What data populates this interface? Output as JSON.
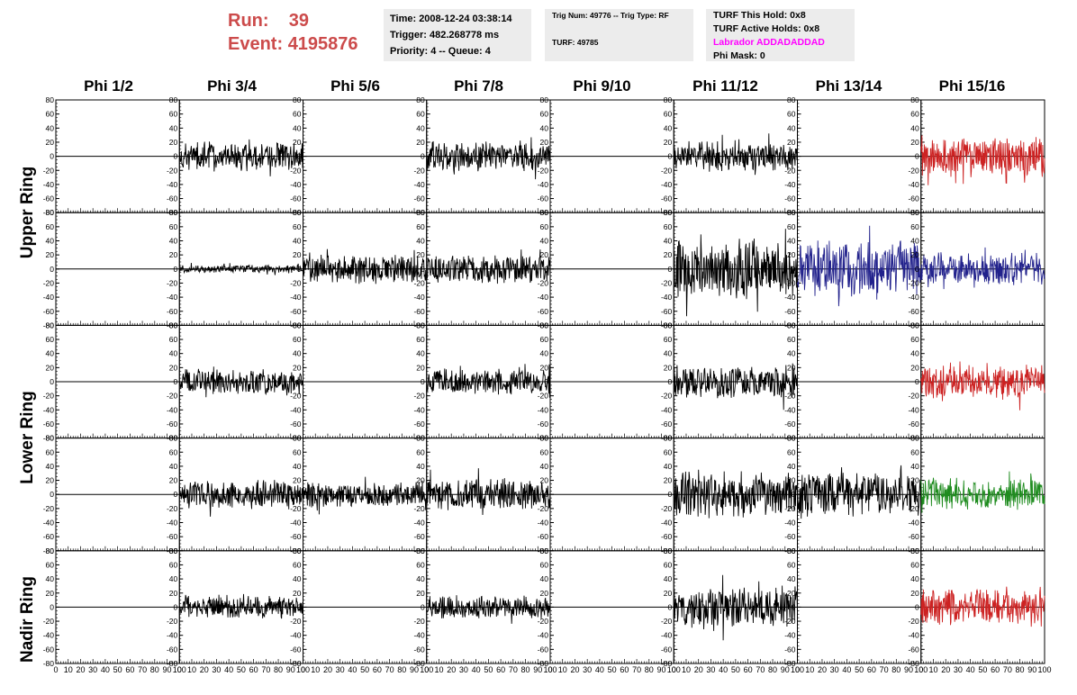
{
  "header": {
    "run_label": "Run:",
    "run_value": "39",
    "event_label": "Event:",
    "event_value": "4195876",
    "time": "Time: 2008-12-24 03:38:14",
    "trigger": "Trigger: 482.268778 ms",
    "priority": "Priority: 4 -- Queue: 4",
    "trig_num": "Trig Num: 49776 -- Trig Type: RF",
    "turf": "TURF: 49785",
    "turf_this_hold": "TURF This Hold: 0x8",
    "turf_active_holds": "TURF Active Holds: 0x8",
    "labrador": "Labrador ADDADADDAD",
    "phi_mask": "Phi Mask: 0"
  },
  "columns": [
    "Phi 1/2",
    "Phi 3/4",
    "Phi 5/6",
    "Phi 7/8",
    "Phi 9/10",
    "Phi 11/12",
    "Phi 13/14",
    "Phi 15/16"
  ],
  "ring_labels": [
    "Upper Ring",
    "Lower Ring",
    "Nadir Ring"
  ],
  "colors": {
    "black": "#000000",
    "red": "#cc2222",
    "blue": "#22228c",
    "green": "#1f8c1f",
    "header_red": "#cc4b4b",
    "labrador": "#ff00ff",
    "box_bg": "#ececec"
  },
  "chart_data": {
    "type": "line",
    "x_range": [
      0,
      100
    ],
    "y_range": [
      -80,
      80
    ],
    "y_ticks": [
      80,
      60,
      40,
      20,
      0,
      -20,
      -40,
      -60,
      -80
    ],
    "x_ticks": [
      "0",
      "10",
      "20",
      "30",
      "40",
      "50",
      "60",
      "70",
      "80",
      "90",
      "100"
    ],
    "grid": false,
    "rows": [
      {
        "row": 1,
        "ring": "Upper Ring",
        "traces": [
          {
            "col": 1,
            "present": false
          },
          {
            "col": 2,
            "present": true,
            "color": "black",
            "amplitude": 22
          },
          {
            "col": 3,
            "present": false
          },
          {
            "col": 4,
            "present": true,
            "color": "black",
            "amplitude": 24
          },
          {
            "col": 5,
            "present": false
          },
          {
            "col": 6,
            "present": true,
            "color": "black",
            "amplitude": 22
          },
          {
            "col": 7,
            "present": false
          },
          {
            "col": 8,
            "present": true,
            "color": "red",
            "amplitude": 32
          }
        ]
      },
      {
        "row": 2,
        "ring": "Upper Ring",
        "traces": [
          {
            "col": 1,
            "present": false
          },
          {
            "col": 2,
            "present": true,
            "color": "black",
            "amplitude": 6
          },
          {
            "col": 3,
            "present": true,
            "color": "black",
            "amplitude": 22
          },
          {
            "col": 4,
            "present": true,
            "color": "black",
            "amplitude": 22
          },
          {
            "col": 5,
            "present": false
          },
          {
            "col": 6,
            "present": true,
            "color": "black",
            "amplitude": 45
          },
          {
            "col": 7,
            "present": true,
            "color": "blue",
            "amplitude": 45
          },
          {
            "col": 8,
            "present": true,
            "color": "blue",
            "amplitude": 26
          }
        ]
      },
      {
        "row": 3,
        "ring": "Lower Ring",
        "traces": [
          {
            "col": 1,
            "present": false
          },
          {
            "col": 2,
            "present": true,
            "color": "black",
            "amplitude": 20
          },
          {
            "col": 3,
            "present": false
          },
          {
            "col": 4,
            "present": true,
            "color": "black",
            "amplitude": 20
          },
          {
            "col": 5,
            "present": false
          },
          {
            "col": 6,
            "present": true,
            "color": "black",
            "amplitude": 26
          },
          {
            "col": 7,
            "present": false
          },
          {
            "col": 8,
            "present": true,
            "color": "red",
            "amplitude": 26
          }
        ]
      },
      {
        "row": 4,
        "ring": "Lower Ring",
        "traces": [
          {
            "col": 1,
            "present": false
          },
          {
            "col": 2,
            "present": true,
            "color": "black",
            "amplitude": 22
          },
          {
            "col": 3,
            "present": true,
            "color": "black",
            "amplitude": 20
          },
          {
            "col": 4,
            "present": true,
            "color": "black",
            "amplitude": 24
          },
          {
            "col": 5,
            "present": false
          },
          {
            "col": 6,
            "present": true,
            "color": "black",
            "amplitude": 36
          },
          {
            "col": 7,
            "present": true,
            "color": "black",
            "amplitude": 36
          },
          {
            "col": 8,
            "present": true,
            "color": "green",
            "amplitude": 26
          }
        ]
      },
      {
        "row": 5,
        "ring": "Nadir Ring",
        "traces": [
          {
            "col": 1,
            "present": false
          },
          {
            "col": 2,
            "present": true,
            "color": "black",
            "amplitude": 18
          },
          {
            "col": 3,
            "present": false
          },
          {
            "col": 4,
            "present": true,
            "color": "black",
            "amplitude": 18
          },
          {
            "col": 5,
            "present": false
          },
          {
            "col": 6,
            "present": true,
            "color": "black",
            "amplitude": 32
          },
          {
            "col": 7,
            "present": false
          },
          {
            "col": 8,
            "present": true,
            "color": "red",
            "amplitude": 30
          }
        ]
      }
    ]
  }
}
